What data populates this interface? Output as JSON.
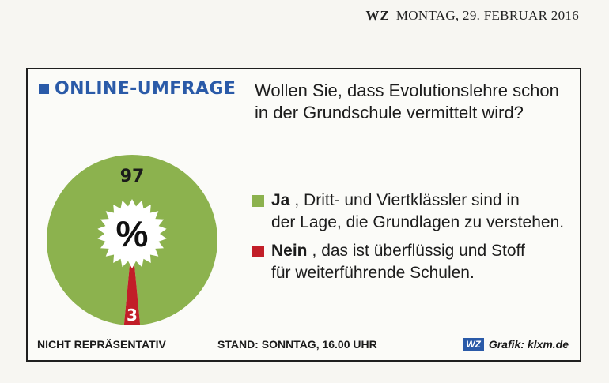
{
  "masthead": {
    "brand": "WZ",
    "date": "MONTAG, 29. FEBRUAR 2016"
  },
  "survey": {
    "heading": "ONLINE-UMFRAGE",
    "question_line1": "Wollen Sie, dass Evolutionslehre schon",
    "question_line2": "in der Grundschule vermittelt wird?"
  },
  "chart_data": {
    "type": "pie",
    "unit": "%",
    "slices": [
      {
        "label": "Ja",
        "value": 97,
        "color": "#8cb24e",
        "description_line1": "Dritt- und Viertklässler sind in",
        "description_line2": "der Lage, die Grundlagen zu verstehen."
      },
      {
        "label": "Nein",
        "value": 3,
        "color": "#c21e28",
        "description_line1": "das ist überflüssig und Stoff",
        "description_line2": "für weiterführende Schulen."
      }
    ]
  },
  "footer": {
    "note": "NICHT REPRÄSENTATIV",
    "stand": "STAND: SONNTAG, 16.00 UHR",
    "logo": "WZ",
    "credit": "Grafik: klxm.de"
  }
}
